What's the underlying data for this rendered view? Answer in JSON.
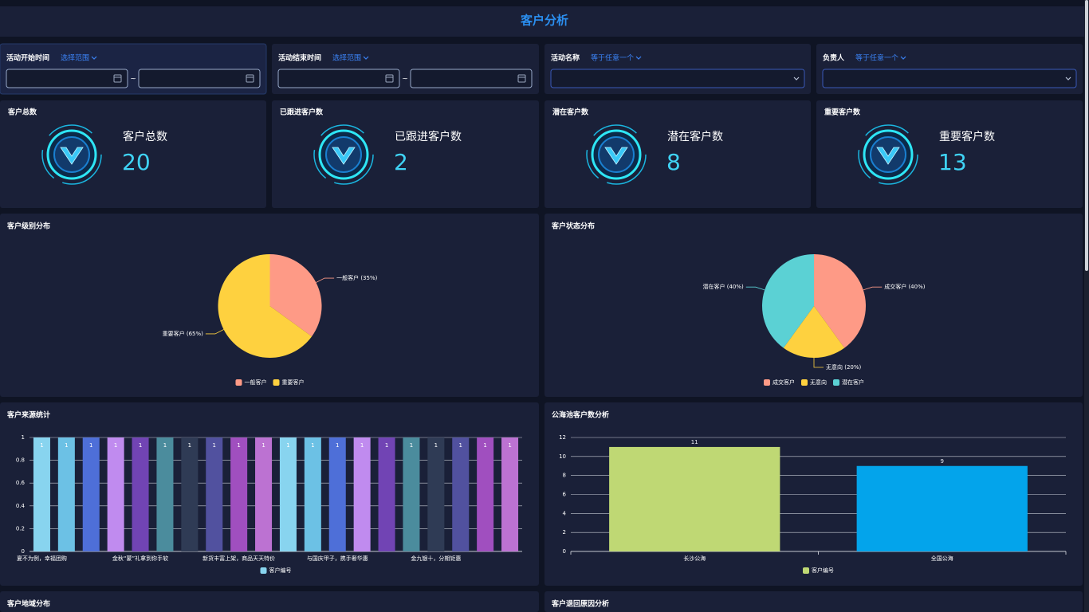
{
  "header": {
    "title": "客户分析"
  },
  "range_separator": "~",
  "filters": [
    {
      "label": "活动开始时间",
      "operator": "选择范围",
      "kind": "range"
    },
    {
      "label": "活动结束时间",
      "operator": "选择范围",
      "kind": "range"
    },
    {
      "label": "活动名称",
      "operator": "等于任意一个",
      "kind": "select"
    },
    {
      "label": "负责人",
      "operator": "等于任意一个",
      "kind": "select"
    }
  ],
  "stats": [
    {
      "title": "客户总数",
      "label": "客户总数",
      "value": 20
    },
    {
      "title": "已跟进客户数",
      "label": "已跟进客户数",
      "value": 2
    },
    {
      "title": "潜在客户数",
      "label": "潜在客户数",
      "value": 8
    },
    {
      "title": "重要客户数",
      "label": "重要客户数",
      "value": 13
    }
  ],
  "charts": [
    {
      "type": "pie",
      "title": "客户级别分布",
      "categories": [
        "一般客户",
        "重要客户"
      ],
      "values": [
        35,
        65
      ],
      "value_labels": [
        "一般客户 (35%)",
        "重要客户 (65%)"
      ],
      "colors": [
        "#fe9a86",
        "#fed13f"
      ]
    },
    {
      "type": "pie",
      "title": "客户状态分布",
      "categories": [
        "成交客户",
        "无意向",
        "潜在客户"
      ],
      "values": [
        40,
        20,
        40
      ],
      "value_labels": [
        "成交客户 (40%)",
        "无意向 (20%)",
        "潜在客户 (40%)"
      ],
      "colors": [
        "#fe9a86",
        "#fed13f",
        "#5bd1d4"
      ]
    },
    {
      "type": "bar",
      "title": "客户来源统计",
      "categories": [
        "夏不为例，幸福团购",
        null,
        null,
        null,
        "金秋“蒙”礼拿到你手软",
        null,
        null,
        null,
        "新货丰富上架，商品天天特价",
        null,
        null,
        null,
        "与国庆甲子，携手奢华惠",
        null,
        null,
        null,
        "金九银十，分期钜惠",
        null,
        null,
        null
      ],
      "series": [
        {
          "name": "客户编号",
          "values": [
            1,
            1,
            1,
            1,
            1,
            1,
            1,
            1,
            1,
            1,
            1,
            1,
            1,
            1,
            1,
            1,
            1,
            1,
            1,
            1
          ],
          "colors": [
            "#88d4ef",
            "#6cc1e5",
            "#4e6fd8",
            "#c08bef",
            "#7144b4",
            "#4b8c9d",
            "#2f3b55",
            "#51519f",
            "#a04fbf",
            "#bc72d2"
          ]
        }
      ],
      "ylim": [
        0,
        1
      ],
      "yticks": [
        0,
        0.2,
        0.4,
        0.6,
        0.8,
        1
      ],
      "grid": true,
      "value_label_position": "inside"
    },
    {
      "type": "bar",
      "title": "公海池客户数分析",
      "categories": [
        "长沙公海",
        "全国公海"
      ],
      "series": [
        {
          "name": "客户编号",
          "values": [
            11,
            9
          ],
          "colors": [
            "#bfd874",
            "#03a4eb"
          ]
        }
      ],
      "ylim": [
        0,
        12
      ],
      "yticks": [
        0,
        2,
        4,
        6,
        8,
        10,
        12
      ],
      "grid": true,
      "value_label_position": "top"
    }
  ],
  "bottom_panels": [
    "客户地域分布",
    "客户退回原因分析"
  ]
}
